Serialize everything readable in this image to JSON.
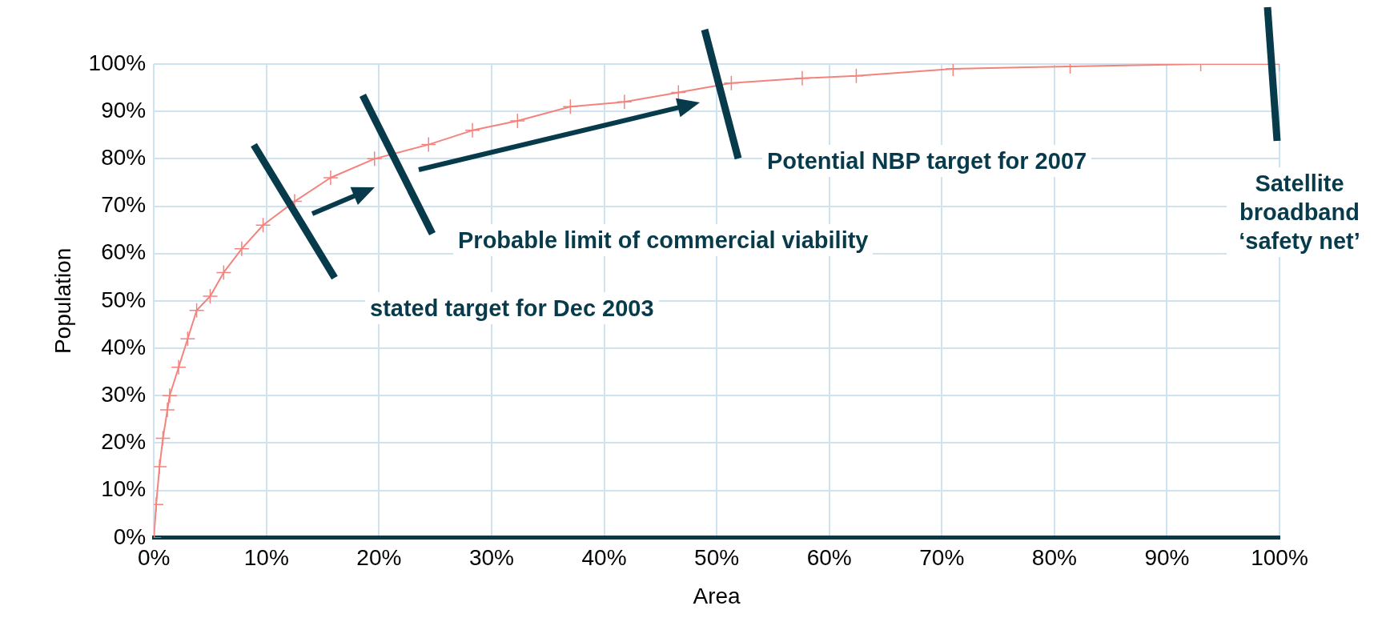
{
  "chart_data": {
    "type": "line",
    "xlabel": "Area",
    "ylabel": "Population",
    "x": [
      0,
      0.2,
      0.5,
      0.8,
      1.2,
      1.4,
      2.2,
      3,
      3.8,
      5,
      6.2,
      7.8,
      9.7,
      12.5,
      15.7,
      19.6,
      24.4,
      28.3,
      32.3,
      37,
      41.8,
      46.6,
      51.3,
      57.6,
      62.4,
      71,
      81.4,
      93,
      100
    ],
    "series": [
      {
        "color": "#f4837d",
        "values": [
          0,
          7,
          15,
          21,
          27,
          30,
          36,
          42,
          48,
          51,
          56,
          61,
          66,
          71,
          76,
          80,
          83,
          86,
          88,
          91,
          92,
          94,
          96,
          97,
          97.5,
          99,
          99.5,
          100,
          100
        ]
      }
    ],
    "xlim": [
      0,
      100
    ],
    "ylim": [
      0,
      100
    ],
    "xticks": [
      {
        "value": 0,
        "label": "0%"
      },
      {
        "value": 10,
        "label": "10%"
      },
      {
        "value": 20,
        "label": "20%"
      },
      {
        "value": 30,
        "label": "30%"
      },
      {
        "value": 40,
        "label": "40%"
      },
      {
        "value": 50,
        "label": "50%"
      },
      {
        "value": 60,
        "label": "60%"
      },
      {
        "value": 70,
        "label": "70%"
      },
      {
        "value": 80,
        "label": "80%"
      },
      {
        "value": 90,
        "label": "90%"
      },
      {
        "value": 100,
        "label": "100%"
      }
    ],
    "yticks": [
      {
        "value": 0,
        "label": "0%"
      },
      {
        "value": 10,
        "label": "10%"
      },
      {
        "value": 20,
        "label": "20%"
      },
      {
        "value": 30,
        "label": "30%"
      },
      {
        "value": 40,
        "label": "40%"
      },
      {
        "value": 50,
        "label": "50%"
      },
      {
        "value": 60,
        "label": "60%"
      },
      {
        "value": 70,
        "label": "70%"
      },
      {
        "value": 80,
        "label": "80%"
      },
      {
        "value": 90,
        "label": "90%"
      },
      {
        "value": 100,
        "label": "100%"
      }
    ],
    "grid": true,
    "marker": "cross",
    "line_style": "solid",
    "annotations": [
      "stated target for Dec 2003",
      "Probable limit of commercial viability",
      "Potential NBP target for 2007",
      "Satellite broadband ‘safety net’"
    ]
  }
}
